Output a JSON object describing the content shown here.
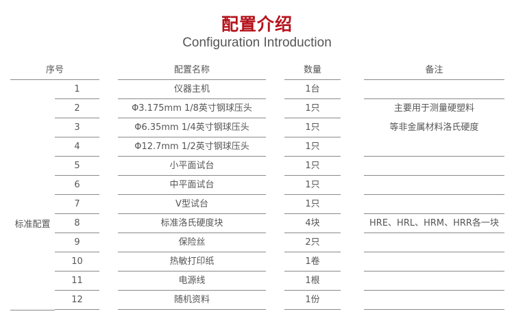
{
  "header": {
    "title": "配置介绍",
    "subtitle": "Configuration Introduction"
  },
  "table": {
    "columns": [
      "序号",
      "配置名称",
      "数量",
      "备注"
    ],
    "group_label": "标准配置",
    "rows": [
      {
        "no": "1",
        "name": "仪器主机",
        "qty": "1台"
      },
      {
        "no": "2",
        "name": "Φ3.175mm 1/8英寸钢球压头",
        "qty": "1只"
      },
      {
        "no": "3",
        "name": "Φ6.35mm 1/4英寸钢球压头",
        "qty": "1只"
      },
      {
        "no": "4",
        "name": "Φ12.7mm 1/2英寸钢球压头",
        "qty": "1只"
      },
      {
        "no": "5",
        "name": "小平面试台",
        "qty": "1只"
      },
      {
        "no": "6",
        "name": "中平面试台",
        "qty": "1只"
      },
      {
        "no": "7",
        "name": "V型试台",
        "qty": "1只"
      },
      {
        "no": "8",
        "name": "标准洛氏硬度块",
        "qty": "4块"
      },
      {
        "no": "9",
        "name": "保险丝",
        "qty": "2只"
      },
      {
        "no": "10",
        "name": "热敏打印纸",
        "qty": "1卷"
      },
      {
        "no": "11",
        "name": "电源线",
        "qty": "1根"
      },
      {
        "no": "12",
        "name": "随机资料",
        "qty": "1份"
      }
    ],
    "remarks": {
      "rows_2_4": [
        "主要用于测量硬塑料",
        "等非金属材料洛氏硬度"
      ],
      "row_8": "HRE、HRL、HRM、HRR各一块"
    }
  }
}
